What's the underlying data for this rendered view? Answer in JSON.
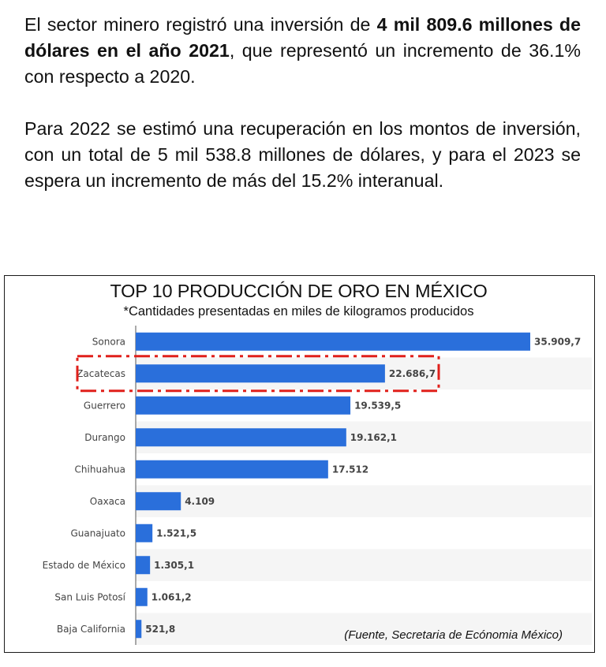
{
  "paragraph1": {
    "part1": "El sector minero registró una inversión de ",
    "bold": "4 mil 809.6 millones de dólares en el año 2021",
    "part2": ", que representó un incremento de 36.1% con respecto a 2020."
  },
  "paragraph2": {
    "text": "Para 2022 se estimó una recuperación en los montos de inversión, con un total de 5 mil 538.8 millones de dólares, y para el 2023 se espera un incremento de más del 15.2% interanual."
  },
  "chart_data": {
    "type": "bar",
    "orientation": "horizontal",
    "title": "TOP 10 PRODUCCIÓN DE ORO EN MÉXICO",
    "subtitle": "*Cantidades presentadas en miles de kilogramos producidos",
    "source": "(Fuente, Secretaria de Ecónomia México)",
    "categories": [
      "Sonora",
      "Zacatecas",
      "Guerrero",
      "Durango",
      "Chihuahua",
      "Oaxaca",
      "Guanajuato",
      "Estado de México",
      "San Luis Potosí",
      "Baja California"
    ],
    "values": [
      35909.7,
      22686.7,
      19539.5,
      19162.1,
      17512,
      4109,
      1521.5,
      1305.1,
      1061.2,
      521.8
    ],
    "value_labels": [
      "35.909,7",
      "22.686,7",
      "19.539,5",
      "19.162,1",
      "17.512",
      "4.109",
      "1.521,5",
      "1.305,1",
      "1.061,2",
      "521,8"
    ],
    "highlighted_category": "Zacatecas",
    "xlim": [
      0,
      36000
    ],
    "bar_color": "#2a6fdb",
    "highlight_color": "#e0201b",
    "grid": false
  }
}
